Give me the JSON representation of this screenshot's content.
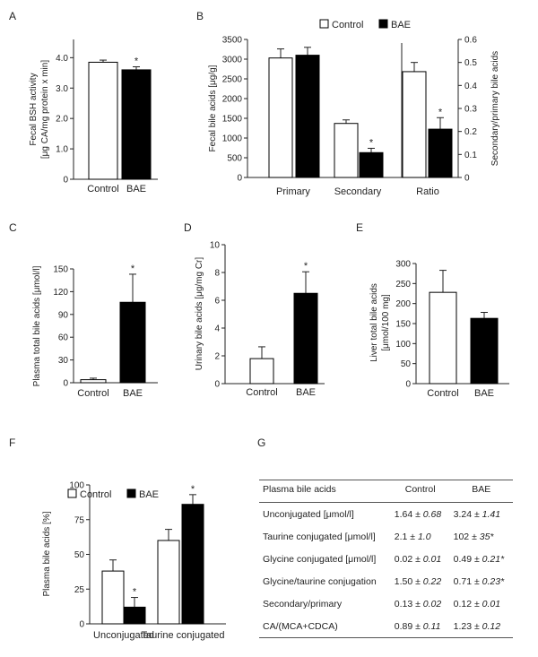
{
  "colors": {
    "control": "#ffffff",
    "bae": "#000000",
    "star": "#999999",
    "axis": "#222222"
  },
  "chart_data": [
    {
      "panel": "A",
      "type": "bar",
      "categories": [
        "Control",
        "BAE"
      ],
      "values": [
        3.85,
        3.6
      ],
      "errors": [
        0.07,
        0.1
      ],
      "stars": [
        "",
        "*"
      ],
      "ylim": [
        0,
        4.6
      ],
      "yticks": [
        0,
        1.0,
        2.0,
        3.0,
        4.0
      ],
      "tick_labels": [
        "0",
        "1.0",
        "2.0",
        "3.0",
        "4.0"
      ],
      "ylabel_lines": [
        "Fecal BSH activity",
        "[μg CA/mg protein x min]"
      ]
    },
    {
      "panel": "B",
      "type": "bar",
      "groups": [
        "Primary",
        "Secondary",
        "Ratio"
      ],
      "series": [
        {
          "name": "Control",
          "values": [
            3030,
            1370,
            0.46
          ],
          "errors": [
            230,
            90,
            0.04
          ]
        },
        {
          "name": "BAE",
          "values": [
            3100,
            630,
            0.21
          ],
          "errors": [
            200,
            110,
            0.05
          ]
        }
      ],
      "stars": [
        "",
        "*",
        "*"
      ],
      "ylim": [
        0,
        3500
      ],
      "yticks": [
        0,
        500,
        1000,
        1500,
        2000,
        2500,
        3000,
        3500
      ],
      "ylabel": "Fecal bile acids [μg/g]",
      "y2lim": [
        0,
        0.6
      ],
      "y2ticks": [
        0,
        0.1,
        0.2,
        0.3,
        0.4,
        0.5,
        0.6
      ],
      "y2ticklabels": [
        "0",
        "0.1",
        "0.2",
        "0.3",
        "0.4",
        "0.5",
        "0.6"
      ],
      "y2label": "Secondary/primary bile acids",
      "legend": [
        "Control",
        "BAE"
      ]
    },
    {
      "panel": "C",
      "type": "bar",
      "categories": [
        "Control",
        "BAE"
      ],
      "values": [
        4,
        106
      ],
      "errors": [
        2,
        37
      ],
      "stars": [
        "",
        "*"
      ],
      "ylim": [
        0,
        150
      ],
      "yticks": [
        0,
        30,
        60,
        90,
        120,
        150
      ],
      "ylabel": "Plasma total bile acids [μmol/l]"
    },
    {
      "panel": "D",
      "type": "bar",
      "categories": [
        "Control",
        "BAE"
      ],
      "values": [
        1.8,
        6.5
      ],
      "errors": [
        0.85,
        1.55
      ],
      "stars": [
        "",
        "*"
      ],
      "ylim": [
        0,
        10
      ],
      "yticks": [
        0,
        2,
        4,
        6,
        8,
        10
      ],
      "ylabel": "Urinary bile acids [μg/mg Cr]"
    },
    {
      "panel": "E",
      "type": "bar",
      "categories": [
        "Control",
        "BAE"
      ],
      "values": [
        228,
        163
      ],
      "errors": [
        55,
        15
      ],
      "stars": [
        "",
        ""
      ],
      "ylim": [
        0,
        300
      ],
      "yticks": [
        0,
        50,
        100,
        150,
        200,
        250,
        300
      ],
      "ylabel_lines": [
        "Liver total bile acids",
        "[μmol/100 mg]"
      ]
    },
    {
      "panel": "F",
      "type": "bar",
      "groups": [
        "Unconjugated",
        "Taurine conjugated"
      ],
      "series": [
        {
          "name": "Control",
          "values": [
            38,
            60
          ],
          "errors": [
            8,
            8
          ]
        },
        {
          "name": "BAE",
          "values": [
            12,
            86
          ],
          "errors": [
            7,
            7
          ]
        }
      ],
      "stars": [
        "*",
        "*"
      ],
      "ylim": [
        0,
        100
      ],
      "yticks": [
        0,
        25,
        50,
        75,
        100
      ],
      "ylabel": "Plasma bile acids [%]",
      "legend": [
        "Control",
        "BAE"
      ]
    }
  ],
  "table": {
    "panel": "G",
    "headers": [
      "Plasma bile acids",
      "Control",
      "BAE"
    ],
    "rows": [
      {
        "label": "Unconjugated [μmol/l]",
        "c_mean": "1.64",
        "c_sd": "± 0.68",
        "b_mean": "3.24",
        "b_sd": "± 1.41"
      },
      {
        "label": "Taurine conjugated [μmol/l]",
        "c_mean": "2.1",
        "c_sd": "± 1.0",
        "b_mean": "102",
        "b_sd": "± 35*"
      },
      {
        "label": "Glycine conjugated [μmol/l]",
        "c_mean": "0.02",
        "c_sd": "± 0.01",
        "b_mean": "0.49",
        "b_sd": "± 0.21*"
      },
      {
        "label": "Glycine/taurine conjugation",
        "c_mean": "1.50",
        "c_sd": "± 0.22",
        "b_mean": "0.71",
        "b_sd": "± 0.23*"
      },
      {
        "label": "Secondary/primary",
        "c_mean": "0.13",
        "c_sd": "± 0.02",
        "b_mean": "0.12",
        "b_sd": "± 0.01"
      },
      {
        "label": "CA/(MCA+CDCA)",
        "c_mean": "0.89",
        "c_sd": "± 0.11",
        "b_mean": "1.23",
        "b_sd": "± 0.12"
      }
    ]
  }
}
